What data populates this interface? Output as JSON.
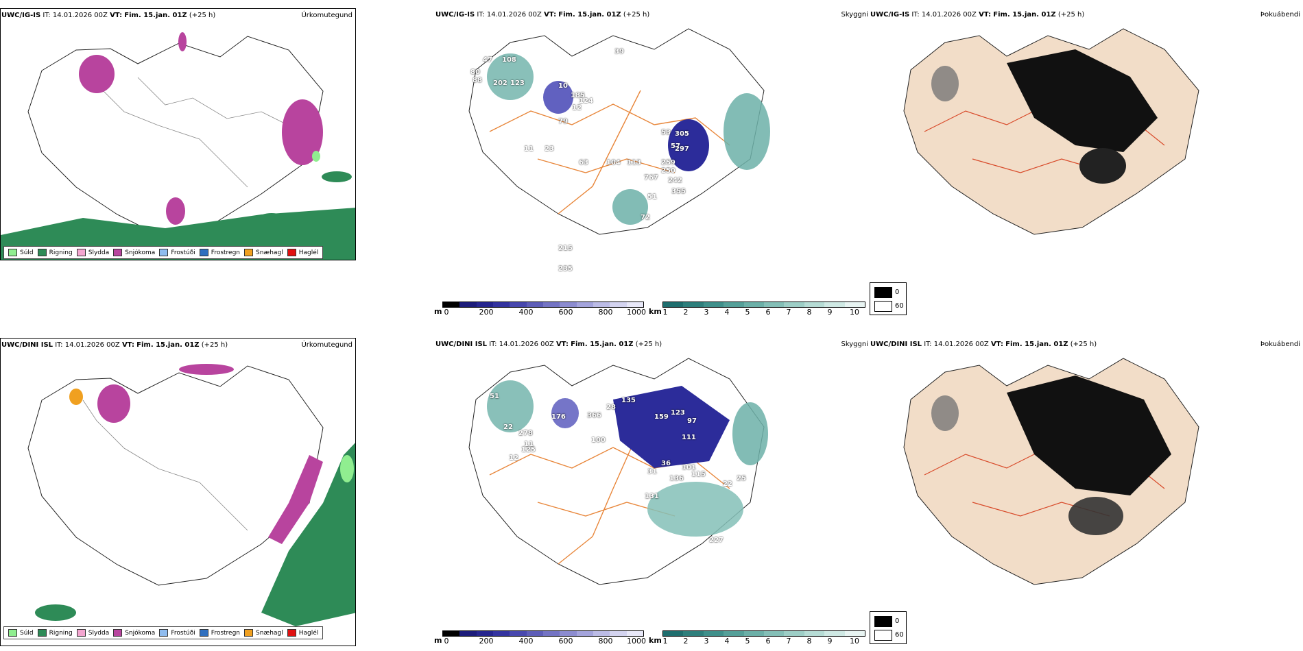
{
  "rows": [
    {
      "model": "UWC/IG-IS",
      "it_label": "IT:",
      "it_value": "14.01.2026 00Z",
      "vt_label": "VT:",
      "vt_value": "Fim. 15.jan. 01Z",
      "lead": "(+25 h)",
      "panels": {
        "precip": "Úrkomutegund",
        "cloud": "Skyggni",
        "fog": "Þokuábendi"
      }
    },
    {
      "model": "UWC/DINI ISL",
      "it_label": "IT:",
      "it_value": "14.01.2026 00Z",
      "vt_label": "VT:",
      "vt_value": "Fim. 15.jan. 01Z",
      "lead": "(+25 h)",
      "panels": {
        "precip": "Úrkomutegund",
        "cloud": "Skyggni",
        "fog": "Þokuábendi"
      }
    }
  ],
  "precip_legend": [
    {
      "label": "Súld",
      "color": "#90ee90"
    },
    {
      "label": "Rigning",
      "color": "#2e8b57"
    },
    {
      "label": "Slydda",
      "color": "#f4a6d0"
    },
    {
      "label": "Snjókoma",
      "color": "#b8449e"
    },
    {
      "label": "Frostúði",
      "color": "#8fbcef"
    },
    {
      "label": "Frostregn",
      "color": "#2f6fbf"
    },
    {
      "label": "Snæhagl",
      "color": "#f0a020"
    },
    {
      "label": "Haglél",
      "color": "#e01010"
    }
  ],
  "cloud_base_bar": {
    "unit": "m",
    "ticks": [
      "0",
      "200",
      "400",
      "600",
      "800",
      "1000"
    ],
    "colors": [
      "#000000",
      "#1c1c7a",
      "#26268f",
      "#3434a0",
      "#4848ae",
      "#5e5eb8",
      "#7474c4",
      "#8c8cd0",
      "#a4a4dc",
      "#bcbce6",
      "#d4d4f0",
      "#e8e8f8"
    ]
  },
  "visibility_bar": {
    "unit": "km",
    "ticks": [
      "1",
      "2",
      "3",
      "4",
      "5",
      "6",
      "7",
      "8",
      "9",
      "10"
    ],
    "colors": [
      "#1f6e6e",
      "#2e7f7c",
      "#3f908b",
      "#55a099",
      "#6cb0a8",
      "#84bfb7",
      "#9dcec6",
      "#b6dcd5",
      "#cfe9e4",
      "#e8f4f2"
    ]
  },
  "fog_legend": [
    {
      "label": "0",
      "color": "#000000"
    },
    {
      "label": "60",
      "color": "#ffffff"
    }
  ],
  "map_labels": {
    "row0": [
      "47",
      "108",
      "80",
      "88",
      "202",
      "123",
      "10",
      "185",
      "12",
      "39",
      "124",
      "79",
      "23",
      "63",
      "104",
      "113",
      "767",
      "259",
      "250",
      "242",
      "57",
      "53",
      "305",
      "297",
      "355",
      "51",
      "72",
      "215",
      "235",
      "11"
    ],
    "row1": [
      "51",
      "176",
      "22",
      "278",
      "125",
      "12",
      "366",
      "100",
      "135",
      "28",
      "159",
      "123",
      "97",
      "111",
      "31",
      "101",
      "115",
      "36",
      "136",
      "131",
      "227",
      "11",
      "25",
      "22"
    ]
  }
}
